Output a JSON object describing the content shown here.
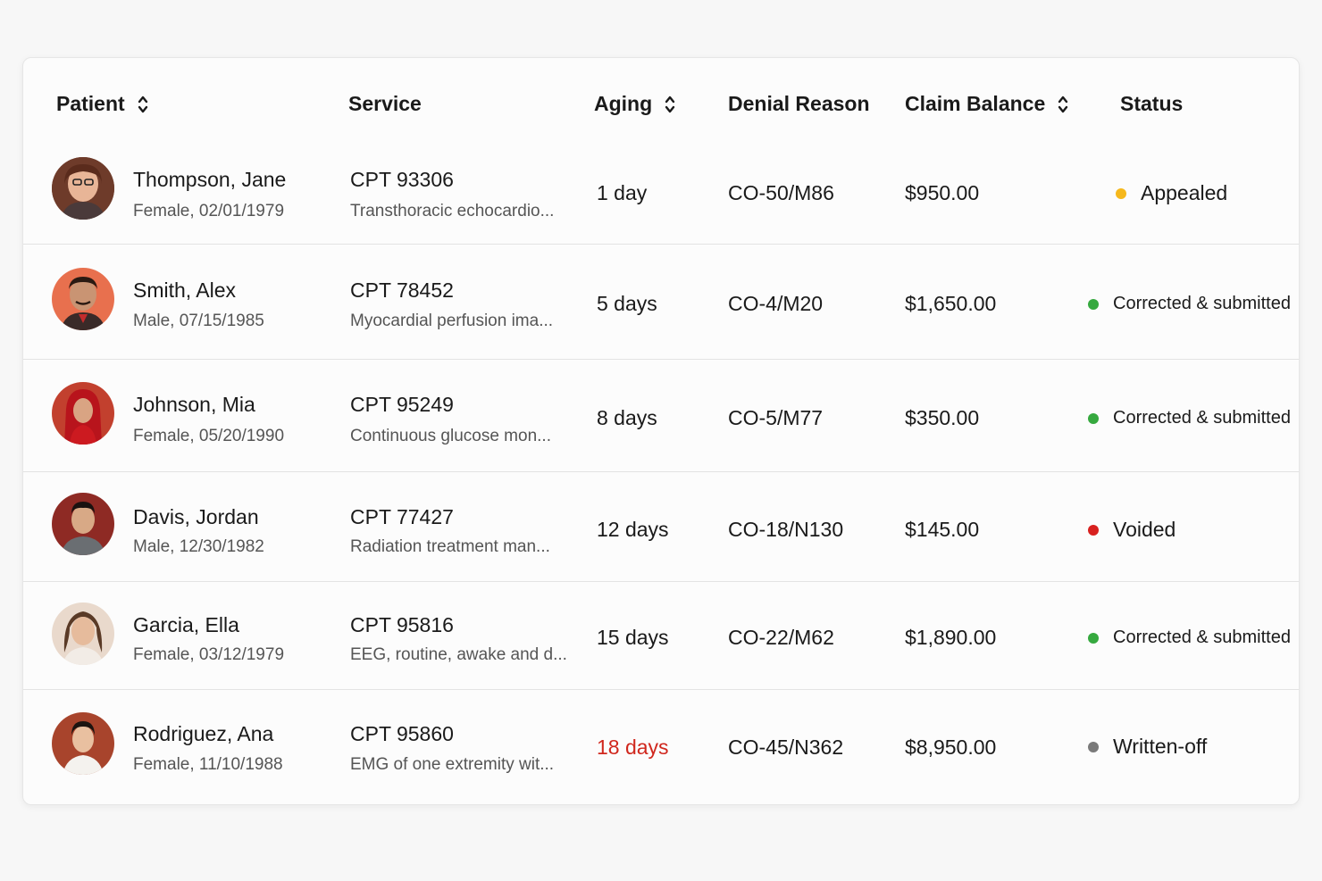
{
  "columns": {
    "patient": "Patient",
    "service": "Service",
    "aging": "Aging",
    "denial": "Denial Reason",
    "balance": "Claim Balance",
    "status": "Status"
  },
  "colors": {
    "appealed": "#f6b81c",
    "corrected": "#36a93f",
    "voided": "#d8211f",
    "written_off": "#7a7a7a",
    "aging_alert": "#d0271d"
  },
  "rows": [
    {
      "name": "Thompson, Jane",
      "demo": "Female, 02/01/1979",
      "cpt": "CPT 93306",
      "desc": "Transthoracic echocardio...",
      "aging": "1 day",
      "denial": "CO-50/M86",
      "balance": "$950.00",
      "status": "Appealed"
    },
    {
      "name": "Smith, Alex",
      "demo": "Male, 07/15/1985",
      "cpt": "CPT 78452",
      "desc": "Myocardial perfusion ima...",
      "aging": "5 days",
      "denial": "CO-4/M20",
      "balance": "$1,650.00",
      "status": "Corrected & submitted"
    },
    {
      "name": "Johnson, Mia",
      "demo": "Female, 05/20/1990",
      "cpt": "CPT 95249",
      "desc": "Continuous glucose mon...",
      "aging": "8 days",
      "denial": "CO-5/M77",
      "balance": "$350.00",
      "status": "Corrected & submitted"
    },
    {
      "name": "Davis, Jordan",
      "demo": "Male, 12/30/1982",
      "cpt": "CPT 77427",
      "desc": "Radiation treatment man...",
      "aging": "12 days",
      "denial": "CO-18/N130",
      "balance": "$145.00",
      "status": "Voided"
    },
    {
      "name": "Garcia, Ella",
      "demo": "Female, 03/12/1979",
      "cpt": "CPT 95816",
      "desc": "EEG, routine, awake and d...",
      "aging": "15 days",
      "denial": "CO-22/M62",
      "balance": "$1,890.00",
      "status": "Corrected & submitted"
    },
    {
      "name": "Rodriguez, Ana",
      "demo": "Female, 11/10/1988",
      "cpt": "CPT 95860",
      "desc": "EMG of one extremity wit...",
      "aging": "18 days",
      "denial": "CO-45/N362",
      "balance": "$8,950.00",
      "status": "Written-off"
    }
  ]
}
